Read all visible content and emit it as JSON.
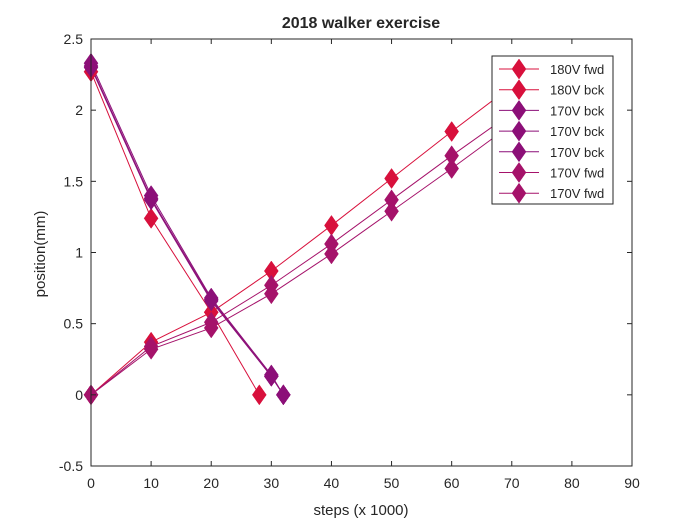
{
  "colors": {
    "fwd_180": "#d8103c",
    "bck_180": "#d8103c",
    "bck_170": "#8c0f78",
    "fwd_170": "#a5126a",
    "axis": "#262626",
    "background": "#ffffff"
  },
  "chart_data": {
    "type": "line",
    "title": "2018 walker exercise",
    "xlabel": "steps (x 1000)",
    "ylabel": "position(mm)",
    "xlim": [
      0,
      90
    ],
    "ylim": [
      -0.5,
      2.5
    ],
    "xticks": [
      "0",
      "10",
      "20",
      "30",
      "40",
      "50",
      "60",
      "70",
      "80",
      "90"
    ],
    "yticks": [
      "-0.5",
      "0",
      "0.5",
      "1",
      "1.5",
      "2",
      "2.5"
    ],
    "grid": false,
    "legend_position": "top-right",
    "marker": "diamond",
    "series": [
      {
        "name": "180V fwd",
        "color": "#d8103c",
        "x": [
          0,
          10,
          20,
          30,
          40,
          50,
          60,
          70
        ],
        "y": [
          0,
          0.37,
          0.58,
          0.87,
          1.19,
          1.52,
          1.85,
          2.17
        ]
      },
      {
        "name": "180V bck",
        "color": "#d8103c",
        "x": [
          0,
          10,
          20,
          28
        ],
        "y": [
          2.27,
          1.24,
          0.58,
          0
        ]
      },
      {
        "name": "170V bck",
        "color": "#8c0f78",
        "x": [
          0,
          10,
          20,
          30,
          32
        ],
        "y": [
          2.33,
          1.4,
          0.68,
          0.14,
          0
        ]
      },
      {
        "name": "170V bck",
        "color": "#8c0f78",
        "x": [
          0,
          10,
          20,
          30,
          32
        ],
        "y": [
          2.31,
          1.38,
          0.67,
          0.13,
          0
        ]
      },
      {
        "name": "170V bck",
        "color": "#8c0f78",
        "x": [
          0,
          10,
          20,
          30,
          32
        ],
        "y": [
          2.3,
          1.37,
          0.66,
          0.13,
          0
        ]
      },
      {
        "name": "170V fwd",
        "color": "#a5126a",
        "x": [
          0,
          10,
          20,
          30,
          40,
          50,
          60,
          70
        ],
        "y": [
          0,
          0.32,
          0.47,
          0.71,
          0.99,
          1.29,
          1.59,
          1.9
        ]
      },
      {
        "name": "170V fwd",
        "color": "#a5126a",
        "x": [
          0,
          10,
          20,
          30,
          40,
          50,
          60,
          70
        ],
        "y": [
          0,
          0.34,
          0.51,
          0.77,
          1.06,
          1.37,
          1.68,
          1.98
        ]
      }
    ]
  }
}
